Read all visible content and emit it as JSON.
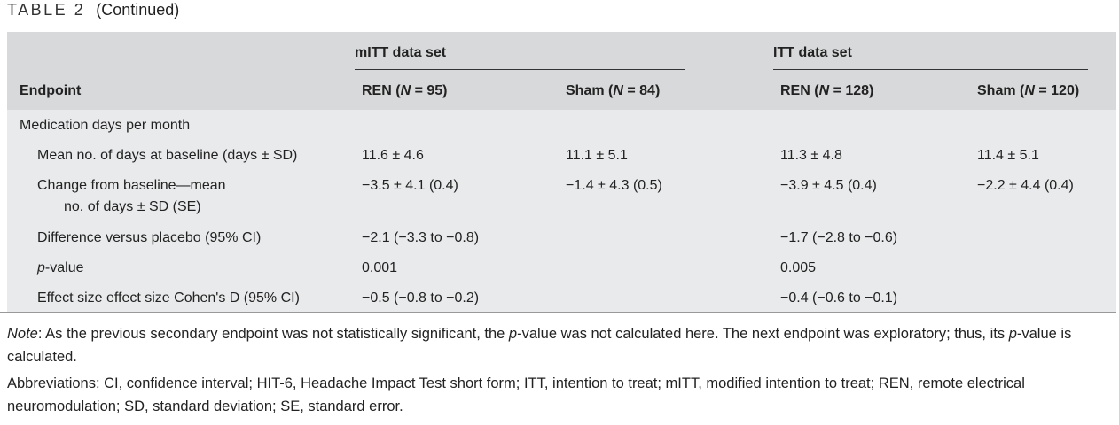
{
  "caption": {
    "label": "TABLE 2",
    "continued": "(Continued)"
  },
  "table": {
    "group_headers": [
      "mITT data set",
      "ITT data set"
    ],
    "columns": {
      "endpoint": "Endpoint",
      "ren_mitt": {
        "pre": "REN (",
        "n": "N",
        "post": " = 95)"
      },
      "sham_mitt": {
        "pre": "Sham (",
        "n": "N",
        "post": " = 84)"
      },
      "ren_itt": {
        "pre": "REN (",
        "n": "N",
        "post": " = 128)"
      },
      "sham_itt": {
        "pre": "Sham (",
        "n": "N",
        "post": " = 120)"
      }
    },
    "section": "Medication days per month",
    "rows": [
      {
        "label": "Mean no. of days at baseline (days ± SD)",
        "ren_mitt": "11.6 ± 4.6",
        "sham_mitt": "11.1 ± 5.1",
        "ren_itt": "11.3 ± 4.8",
        "sham_itt": "11.4 ± 5.1"
      },
      {
        "label": "Change from baseline—mean",
        "label2": "no. of days ± SD (SE)",
        "ren_mitt": "−3.5 ± 4.1 (0.4)",
        "sham_mitt": "−1.4 ± 4.3 (0.5)",
        "ren_itt": "−3.9 ± 4.5 (0.4)",
        "sham_itt": "−2.2 ± 4.4 (0.4)"
      },
      {
        "label": "Difference versus placebo (95% CI)",
        "ren_mitt": "−2.1 (−3.3 to −0.8)",
        "ren_itt": "−1.7 (−2.8 to −0.6)"
      },
      {
        "label_italic": "p",
        "label": "-value",
        "ren_mitt": "0.001",
        "ren_itt": "0.005"
      },
      {
        "label": "Effect size effect size Cohen's D (95% CI)",
        "ren_mitt": "−0.5 (−0.8 to −0.2)",
        "ren_itt": "−0.4 (−0.6 to −0.1)"
      }
    ]
  },
  "note": {
    "label": "Note",
    "t1": ": As the previous secondary endpoint was not statistically significant, the ",
    "p1": "p",
    "t2": "-value was not calculated here. The next endpoint was exploratory; thus, its ",
    "p2": "p",
    "t3": "-value is calculated."
  },
  "abbreviations": "Abbreviations: CI, confidence interval; HIT-6, Headache Impact Test short form; ITT, intention to treat; mITT, modified intention to treat; REN, remote electrical neuromodulation; SD, standard deviation; SE, standard error."
}
